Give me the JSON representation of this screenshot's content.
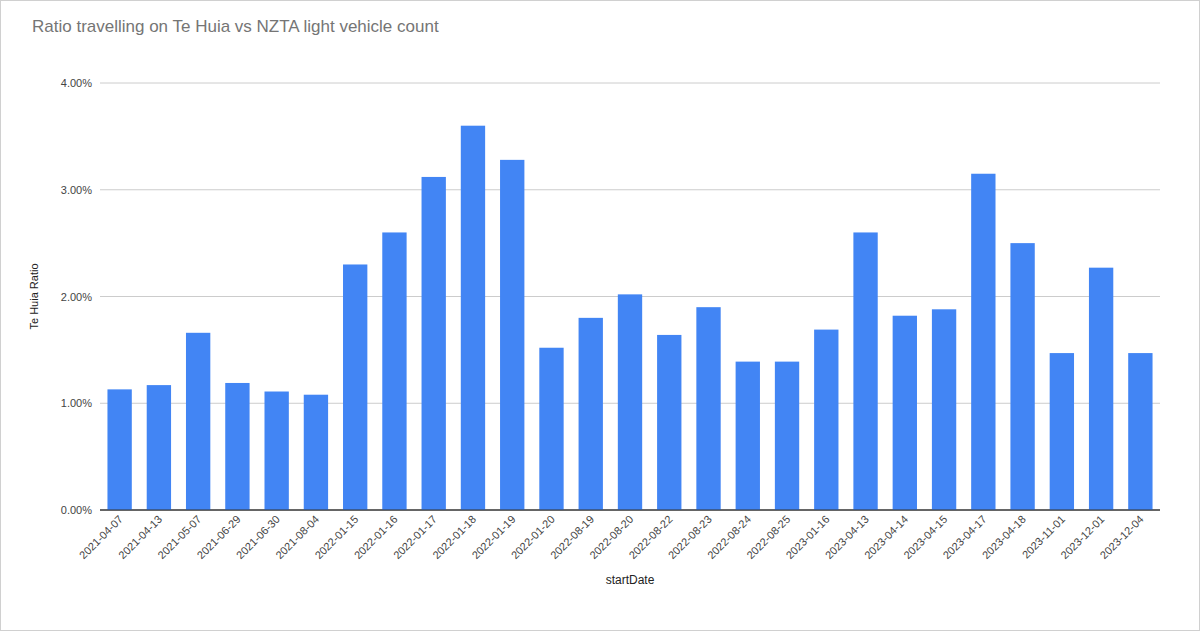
{
  "chart_data": {
    "type": "bar",
    "title": "Ratio travelling on Te Huia vs NZTA light vehicle count",
    "x_label": "startDate",
    "y_label": "Te Huia Ratio",
    "categories": [
      "2021-04-07",
      "2021-04-13",
      "2021-05-07",
      "2021-06-29",
      "2021-06-30",
      "2021-08-04",
      "2022-01-15",
      "2022-01-16",
      "2022-01-17",
      "2022-01-18",
      "2022-01-19",
      "2022-01-20",
      "2022-08-19",
      "2022-08-20",
      "2022-08-22",
      "2022-08-23",
      "2022-08-24",
      "2022-08-25",
      "2023-01-16",
      "2023-04-13",
      "2023-04-14",
      "2023-04-15",
      "2023-04-17",
      "2023-04-18",
      "2023-11-01",
      "2023-12-01",
      "2023-12-04"
    ],
    "values": [
      1.13,
      1.17,
      1.66,
      1.19,
      1.11,
      1.08,
      2.3,
      2.6,
      3.12,
      3.6,
      3.28,
      1.52,
      1.8,
      2.02,
      1.64,
      1.9,
      1.39,
      1.39,
      1.69,
      2.6,
      1.82,
      1.88,
      3.15,
      2.5,
      1.47,
      2.27,
      1.47
    ],
    "color": "#4285f4",
    "ylim": [
      0,
      4
    ],
    "yticks": [
      {
        "value": 0,
        "label": "0.00%"
      },
      {
        "value": 1,
        "label": "1.00%"
      },
      {
        "value": 2,
        "label": "2.00%"
      },
      {
        "value": 3,
        "label": "3.00%"
      },
      {
        "value": 4,
        "label": "4.00%"
      }
    ],
    "grid": true
  }
}
